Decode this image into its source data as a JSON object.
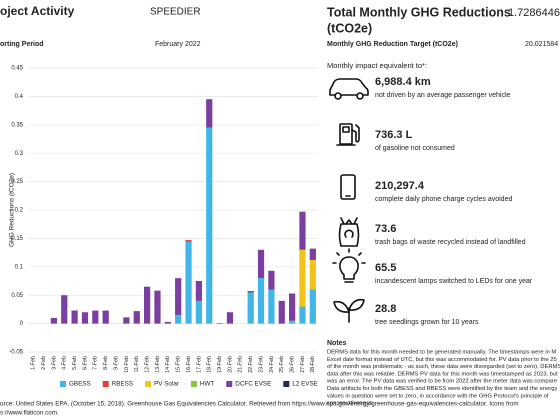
{
  "header": {
    "project_label": "oject Activity",
    "project": "SPEEDIER",
    "period_label": "orting Period",
    "period": "February 2022"
  },
  "summary": {
    "total_label": "Total Monthly GHG Reductions",
    "total_unit": "(tCO2e)",
    "total_value": "1.7286446",
    "target_label": "Monthly GHG Reduction Target (tCO2e)",
    "target_value": "20.021584"
  },
  "chart_data": {
    "type": "bar",
    "stacked": true,
    "y_label": "GHG Reductions (tCO2e)",
    "categories": [
      "1-Feb",
      "2-Feb",
      "3-Feb",
      "4-Feb",
      "5-Feb",
      "6-Feb",
      "7-Feb",
      "8-Feb",
      "9-Feb",
      "10-Feb",
      "11-Feb",
      "12-Feb",
      "13-Feb",
      "14-Feb",
      "15-Feb",
      "16-Feb",
      "17-Feb",
      "18-Feb",
      "19-Feb",
      "20-Feb",
      "21-Feb",
      "22-Feb",
      "23-Feb",
      "24-Feb",
      "25-Feb",
      "26-Feb",
      "27-Feb",
      "28-Feb"
    ],
    "series": [
      {
        "name": "GBESS",
        "color": "#41b6e6",
        "values": [
          0,
          0,
          0,
          0,
          0,
          0,
          0,
          0,
          0,
          0,
          0,
          0,
          0,
          0,
          0.015,
          0.144,
          0.04,
          0.345,
          0,
          0,
          0,
          0.055,
          0.08,
          0.06,
          0,
          0.005,
          0.03,
          0.06
        ]
      },
      {
        "name": "RBESS",
        "color": "#e03c31",
        "values": [
          0,
          0,
          0,
          0,
          0,
          0,
          0,
          0,
          0,
          0,
          0,
          0,
          0,
          0,
          0,
          0.003,
          0,
          0,
          0.001,
          0,
          0,
          0,
          0,
          0,
          0,
          0,
          0,
          0
        ]
      },
      {
        "name": "PV Solar",
        "color": "#f2c318",
        "values": [
          0,
          0,
          0,
          0,
          0,
          0,
          0,
          0,
          0,
          0,
          0,
          0,
          0,
          0,
          0,
          0,
          0,
          0,
          0,
          0,
          0,
          0,
          0,
          0,
          0,
          0,
          0.1,
          0.052
        ]
      },
      {
        "name": "HWT",
        "color": "#8cc63f",
        "values": [
          0,
          0,
          0,
          0,
          0,
          0,
          0,
          0,
          0,
          0,
          0,
          0,
          0,
          0,
          0,
          0,
          0,
          0,
          0,
          0,
          0,
          0,
          0,
          0,
          0,
          0,
          0,
          0
        ]
      },
      {
        "name": "DCFC EVSE",
        "color": "#7b3fa0",
        "values": [
          0,
          0,
          0.01,
          0.05,
          0.023,
          0.02,
          0.023,
          0.023,
          0,
          0.011,
          0.022,
          0.065,
          0.058,
          0.003,
          0.065,
          0,
          0.035,
          0.05,
          0,
          0.02,
          0,
          0,
          0.05,
          0.033,
          0.04,
          0.048,
          0.067,
          0.02
        ]
      },
      {
        "name": "L2 EVSE",
        "color": "#1f2a5c",
        "values": [
          0,
          0,
          0,
          0,
          0,
          0,
          0,
          0,
          0,
          0,
          0,
          0,
          0,
          0,
          0,
          0,
          0,
          0,
          0,
          0,
          0,
          0.002,
          0,
          0,
          0,
          0,
          0,
          0
        ]
      }
    ],
    "ylim": [
      -0.05,
      0.45
    ],
    "yticks": [
      0.45,
      0.4,
      0.35,
      0.3,
      0.25,
      0.2,
      0.15,
      0.1,
      0.05,
      0,
      -0.05
    ],
    "grid": true,
    "legend": "bottom"
  },
  "impacts": {
    "title": "Monthly impact equivalent to*:",
    "items": [
      {
        "value": "6,988.4 km",
        "label": "not driven by an average passenger vehicle"
      },
      {
        "value": "736.3 L",
        "label": "of gasoline not consumed"
      },
      {
        "value": "210,297.4",
        "label": "complete daily phone charge cycles avoided"
      },
      {
        "value": "73.6",
        "label": "trash bags of waste recycled instead of landfilled"
      },
      {
        "value": "65.5",
        "label": "incandescent lamps switched to LEDs for one year"
      },
      {
        "value": "28.8",
        "label": "tree seedlings grown for 10 years"
      }
    ]
  },
  "notes": {
    "title": "Notes",
    "lines": [
      "DERMS data for this month needed to be generated manually. The timestamps were in M",
      "Excel date format instead of UTC, but this was accommodated for. PV data prior to the 25",
      "of the month was problematic - as such, these data were disregarded (set to zero). DERMS",
      "data after this was reliable. DERMS PV data for this month was timestamped as 2023, but",
      "was an error. The PV data was verified to be from 2022 after the meter data was compare",
      "Data artifacts for both the GBESS and RBESS were identified by the team and the energy",
      "values in question were set to zero, in accordance with the GHG Protocol's principle of",
      "conservativeness."
    ]
  },
  "footer": {
    "lines": [
      "urce: United States EPA. (October 15, 2018). Greenhouse Gas Equivalencies Calculator. Retrieved from https://www.epa.gov/energy/greenhouse-gas-equivalencies-calculator. Icons from",
      "s://www.flaticon.com."
    ]
  }
}
